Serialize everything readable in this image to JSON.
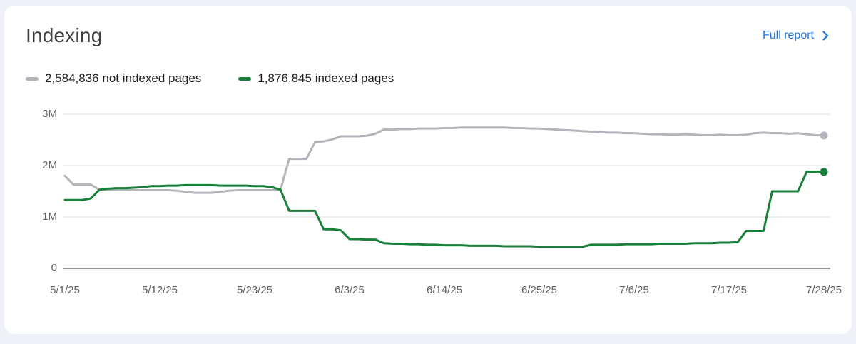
{
  "header": {
    "title": "Indexing",
    "full_report_label": "Full report"
  },
  "legend": {
    "not_indexed": {
      "value": "2,584,836",
      "label": "not indexed pages"
    },
    "indexed": {
      "value": "1,876,845",
      "label": "indexed pages"
    }
  },
  "colors": {
    "accent_blue": "#1a73e8",
    "not_indexed_gray": "#b1b5ba",
    "indexed_green": "#188038",
    "gridline": "#e9eaed",
    "axis_baseline": "#8f949a",
    "axis_label": "#5f6368",
    "page_background": "#eef1f7",
    "card_background": "#ffffff"
  },
  "chart_data": {
    "type": "line",
    "title": "Indexing",
    "unit": "pages",
    "values_unit": "millions of pages",
    "grid": "horizontal",
    "legend_position": "top",
    "ylim_millions": [
      0,
      3
    ],
    "y_ticks": [
      {
        "label": "3M",
        "value": 3
      },
      {
        "label": "2M",
        "value": 2
      },
      {
        "label": "1M",
        "value": 1
      },
      {
        "label": "0",
        "value": 0
      }
    ],
    "x_ticks": [
      {
        "label": "5/1/25",
        "day": 0
      },
      {
        "label": "5/12/25",
        "day": 11
      },
      {
        "label": "5/23/25",
        "day": 22
      },
      {
        "label": "6/3/25",
        "day": 33
      },
      {
        "label": "6/14/25",
        "day": 44
      },
      {
        "label": "6/25/25",
        "day": 55
      },
      {
        "label": "7/6/25",
        "day": 66
      },
      {
        "label": "7/17/25",
        "day": 77
      },
      {
        "label": "7/28/25",
        "day": 88
      }
    ],
    "x_domain": "daily values from 5/1/25 to 7/28/25",
    "series": [
      {
        "key": "not-indexed",
        "name": "not indexed pages",
        "color": "#b1b5ba",
        "latest_total": 2584836,
        "values_millions": [
          1.8,
          1.63,
          1.63,
          1.63,
          1.53,
          1.53,
          1.53,
          1.53,
          1.52,
          1.52,
          1.52,
          1.52,
          1.52,
          1.51,
          1.49,
          1.47,
          1.47,
          1.47,
          1.49,
          1.51,
          1.52,
          1.52,
          1.52,
          1.52,
          1.52,
          1.53,
          2.13,
          2.13,
          2.13,
          2.46,
          2.47,
          2.51,
          2.57,
          2.57,
          2.57,
          2.58,
          2.62,
          2.7,
          2.7,
          2.71,
          2.71,
          2.72,
          2.72,
          2.72,
          2.73,
          2.73,
          2.74,
          2.74,
          2.74,
          2.74,
          2.74,
          2.74,
          2.73,
          2.73,
          2.72,
          2.72,
          2.71,
          2.7,
          2.69,
          2.68,
          2.67,
          2.66,
          2.65,
          2.64,
          2.64,
          2.63,
          2.63,
          2.62,
          2.61,
          2.61,
          2.6,
          2.6,
          2.61,
          2.6,
          2.59,
          2.59,
          2.6,
          2.59,
          2.59,
          2.6,
          2.63,
          2.64,
          2.63,
          2.63,
          2.62,
          2.63,
          2.61,
          2.59,
          2.584836
        ]
      },
      {
        "key": "indexed",
        "name": "indexed pages",
        "color": "#188038",
        "latest_total": 1876845,
        "values_millions": [
          1.33,
          1.33,
          1.33,
          1.36,
          1.53,
          1.55,
          1.56,
          1.56,
          1.57,
          1.58,
          1.6,
          1.6,
          1.61,
          1.61,
          1.62,
          1.62,
          1.62,
          1.62,
          1.61,
          1.61,
          1.61,
          1.61,
          1.6,
          1.6,
          1.58,
          1.53,
          1.12,
          1.12,
          1.12,
          1.12,
          0.76,
          0.76,
          0.74,
          0.57,
          0.57,
          0.56,
          0.56,
          0.49,
          0.48,
          0.48,
          0.47,
          0.47,
          0.46,
          0.46,
          0.45,
          0.45,
          0.45,
          0.44,
          0.44,
          0.44,
          0.44,
          0.43,
          0.43,
          0.43,
          0.43,
          0.42,
          0.42,
          0.42,
          0.42,
          0.42,
          0.42,
          0.46,
          0.46,
          0.46,
          0.46,
          0.47,
          0.47,
          0.47,
          0.47,
          0.48,
          0.48,
          0.48,
          0.48,
          0.49,
          0.49,
          0.49,
          0.5,
          0.5,
          0.51,
          0.73,
          0.73,
          0.73,
          1.5,
          1.5,
          1.5,
          1.5,
          1.88,
          1.88,
          1.876845
        ]
      }
    ]
  }
}
